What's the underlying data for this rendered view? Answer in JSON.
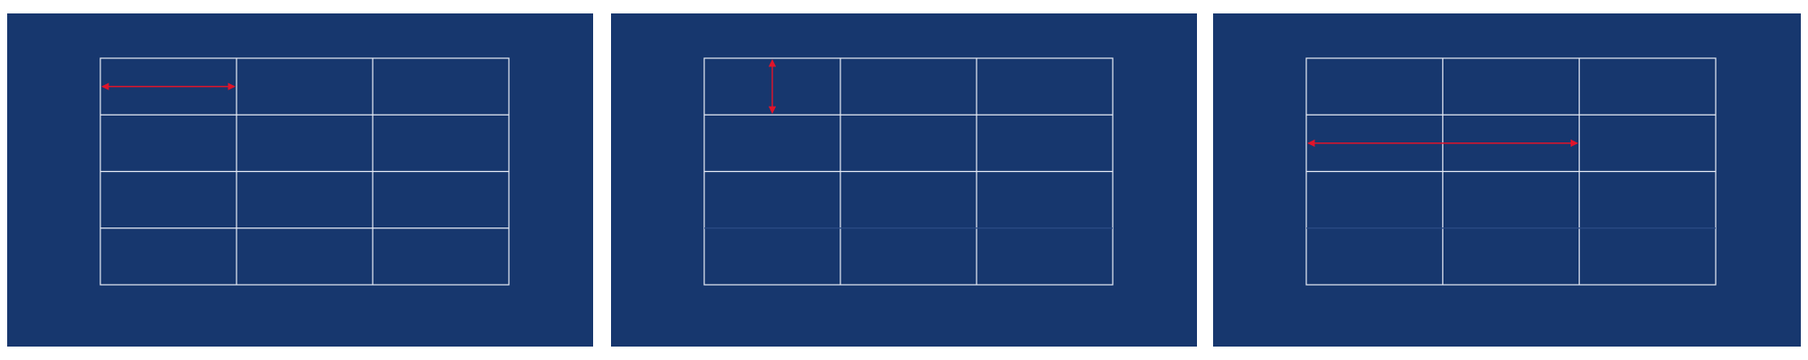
{
  "colors": {
    "page_background": "#ffffff",
    "panel_background": "#17376e",
    "grid_line": "#e6ebf5",
    "faint_line": "#2c4c86",
    "arrow": "#e0142a"
  },
  "grid": {
    "rows": 4,
    "columns": 3
  },
  "panels": [
    {
      "id": "panel-1",
      "arrow": {
        "orientation": "horizontal",
        "span_cells": 1,
        "row": 0,
        "col": 0
      }
    },
    {
      "id": "panel-2",
      "arrow": {
        "orientation": "vertical",
        "span_cells": 1,
        "row": 0,
        "col": 0
      }
    },
    {
      "id": "panel-3",
      "arrow": {
        "orientation": "horizontal",
        "span_cells": 2,
        "row": 1,
        "col": 0
      }
    }
  ]
}
